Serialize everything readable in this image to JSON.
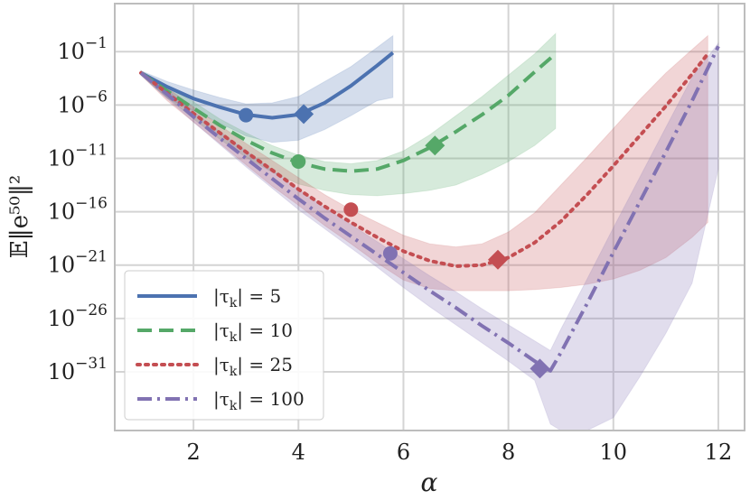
{
  "chart_data": {
    "type": "line",
    "title": "",
    "xlabel": "α",
    "ylabel": "𝔼‖e⁵⁰‖²",
    "xlim": [
      0.5,
      12.5
    ],
    "ylim_log10": [
      -36.5,
      3.5
    ],
    "x_ticks": [
      2,
      4,
      6,
      8,
      10,
      12
    ],
    "x_tick_labels": [
      "2",
      "4",
      "6",
      "8",
      "10",
      "12"
    ],
    "y_ticks_log10": [
      -1,
      -6,
      -11,
      -16,
      -21,
      -26,
      -31
    ],
    "y_tick_bases": [
      "10",
      "10",
      "10",
      "10",
      "10",
      "10",
      "10"
    ],
    "y_tick_exponents": [
      "−1",
      "−6",
      "−11",
      "−16",
      "−21",
      "−26",
      "−31"
    ],
    "grid": true,
    "legend_position": "bottom-left",
    "series": [
      {
        "name": "|τk| = 5",
        "label_main": "|τ",
        "label_sub": "k",
        "label_rest": "| = 5",
        "color": "#4c72b0",
        "dash": "solid",
        "x": [
          1.0,
          1.5,
          2.0,
          2.5,
          3.0,
          3.5,
          4.0,
          4.5,
          5.0,
          5.5,
          5.8
        ],
        "log10_y": [
          -3.0,
          -4.3,
          -5.4,
          -6.2,
          -6.9,
          -7.2,
          -6.9,
          -5.8,
          -4.2,
          -2.3,
          -1.1
        ],
        "band_upper": [
          -2.8,
          -3.8,
          -4.6,
          -5.3,
          -5.9,
          -5.8,
          -5.2,
          -3.8,
          -2.4,
          -0.6,
          0.5
        ],
        "band_lower": [
          -3.2,
          -5.4,
          -6.5,
          -7.7,
          -8.9,
          -9.5,
          -9.3,
          -8.3,
          -7.0,
          -5.6,
          -5.3
        ],
        "min_x": 3.0,
        "min_log10_y": -6.95,
        "opt_x": 4.1,
        "opt_log10_y": -6.85
      },
      {
        "name": "|τk| = 10",
        "label_main": "|τ",
        "label_sub": "k",
        "label_rest": "| = 10",
        "color": "#55a868",
        "dash": "dashed",
        "x": [
          1.0,
          1.5,
          2.0,
          2.5,
          3.0,
          3.5,
          4.0,
          4.5,
          5.0,
          5.5,
          6.0,
          6.5,
          7.0,
          7.5,
          8.0,
          8.5,
          8.9
        ],
        "log10_y": [
          -3.0,
          -4.7,
          -6.3,
          -7.9,
          -9.3,
          -10.5,
          -11.4,
          -12.0,
          -12.2,
          -12.0,
          -11.2,
          -10.0,
          -8.5,
          -6.9,
          -5.1,
          -2.9,
          -1.2
        ],
        "band_upper": [
          -2.8,
          -4.2,
          -5.7,
          -7.3,
          -8.6,
          -9.8,
          -10.7,
          -11.3,
          -11.5,
          -11.2,
          -10.3,
          -8.8,
          -7.0,
          -5.2,
          -3.2,
          -1.2,
          0.7
        ],
        "band_lower": [
          -3.2,
          -5.3,
          -7.3,
          -9.2,
          -10.9,
          -12.3,
          -13.4,
          -14.0,
          -14.4,
          -14.5,
          -14.3,
          -14.0,
          -13.5,
          -12.5,
          -11.3,
          -9.8,
          -8.2
        ],
        "min_x": 4.0,
        "min_log10_y": -11.3,
        "opt_x": 6.6,
        "opt_log10_y": -9.8
      },
      {
        "name": "|τk| = 25",
        "label_main": "|τ",
        "label_sub": "k",
        "label_rest": "| = 25",
        "color": "#c44e52",
        "dash": "dotted",
        "x": [
          1.0,
          1.5,
          2.0,
          2.5,
          3.0,
          3.5,
          4.0,
          4.5,
          5.0,
          5.5,
          6.0,
          6.5,
          7.0,
          7.5,
          8.0,
          8.5,
          9.0,
          9.5,
          10.0,
          10.5,
          11.0,
          11.5,
          11.8
        ],
        "log10_y": [
          -3.0,
          -4.9,
          -6.8,
          -8.6,
          -10.4,
          -12.1,
          -13.9,
          -15.5,
          -17.0,
          -18.4,
          -19.7,
          -20.6,
          -21.1,
          -21.0,
          -20.3,
          -18.9,
          -16.9,
          -14.4,
          -11.7,
          -8.9,
          -6.1,
          -3.1,
          -1.2
        ],
        "band_upper": [
          -2.8,
          -4.4,
          -6.2,
          -7.9,
          -9.6,
          -11.2,
          -12.8,
          -14.4,
          -15.8,
          -17.0,
          -18.2,
          -19.0,
          -19.3,
          -19.0,
          -17.9,
          -16.1,
          -13.5,
          -10.9,
          -8.2,
          -5.5,
          -3.0,
          -0.8,
          0.5
        ],
        "band_lower": [
          -3.2,
          -5.6,
          -7.6,
          -9.6,
          -11.6,
          -13.6,
          -15.4,
          -17.3,
          -19.0,
          -20.8,
          -22.4,
          -23.2,
          -23.4,
          -23.4,
          -23.4,
          -23.3,
          -23.1,
          -22.8,
          -22.3,
          -21.5,
          -20.3,
          -18.4,
          -17.0
        ],
        "min_x": 5.0,
        "min_log10_y": -15.8,
        "opt_x": 7.8,
        "opt_log10_y": -20.5
      },
      {
        "name": "|τk| = 100",
        "label_main": "|τ",
        "label_sub": "k",
        "label_rest": "| = 100",
        "color": "#8172b2",
        "dash": "dashdot",
        "x": [
          1.0,
          1.5,
          2.0,
          2.5,
          3.0,
          3.5,
          4.0,
          4.5,
          5.0,
          5.5,
          6.0,
          6.5,
          7.0,
          7.5,
          8.0,
          8.5,
          8.8,
          9.0,
          9.5,
          10.0,
          10.5,
          11.0,
          11.5,
          12.0
        ],
        "log10_y": [
          -3.0,
          -5.0,
          -7.1,
          -9.1,
          -11.0,
          -12.9,
          -14.8,
          -16.6,
          -18.3,
          -20.0,
          -21.7,
          -23.4,
          -25.0,
          -26.7,
          -28.3,
          -30.0,
          -30.9,
          -29.2,
          -24.6,
          -19.8,
          -15.1,
          -10.4,
          -5.6,
          -0.5
        ],
        "band_upper": [
          -2.8,
          -4.6,
          -6.6,
          -8.5,
          -10.3,
          -12.1,
          -13.9,
          -15.6,
          -17.2,
          -18.8,
          -20.4,
          -22.0,
          -23.5,
          -25.1,
          -26.6,
          -28.1,
          -29.0,
          -27.0,
          -22.3,
          -17.5,
          -12.8,
          -8.1,
          -3.4,
          -0.2
        ],
        "band_lower": [
          -3.2,
          -5.4,
          -7.6,
          -9.7,
          -11.8,
          -13.8,
          -15.8,
          -17.6,
          -19.4,
          -21.2,
          -23.1,
          -24.9,
          -26.6,
          -28.3,
          -30.0,
          -31.8,
          -35.9,
          -36.5,
          -36.5,
          -35.3,
          -31.5,
          -27.4,
          -22.7,
          -12.0
        ],
        "min_x": 5.75,
        "min_log10_y": -19.9,
        "opt_x": 8.6,
        "opt_log10_y": -30.7
      }
    ]
  }
}
